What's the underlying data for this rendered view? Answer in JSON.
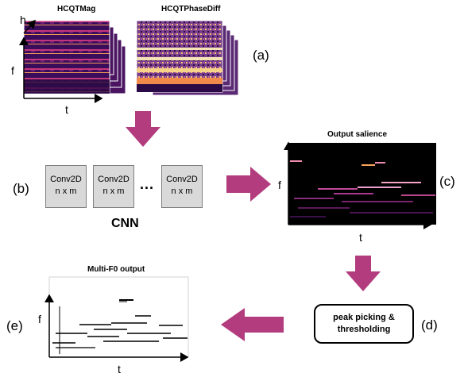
{
  "labels": {
    "hcqt_mag": "HCQTMag",
    "hcqt_phase": "HCQTPhaseDiff",
    "a": "(a)",
    "b": "(b)",
    "c": "(c)",
    "d": "(d)",
    "e": "(e)",
    "h": "h",
    "f": "f",
    "t": "t",
    "output_salience": "Output salience",
    "multi_f0": "Multi-F0 output",
    "cnn": "CNN",
    "dots": "...",
    "peak_line1": "peak picking &",
    "peak_line2": "thresholding"
  },
  "conv_blocks": [
    {
      "line1": "Conv2D",
      "line2": "n x m"
    },
    {
      "line1": "Conv2D",
      "line2": "n x m"
    },
    {
      "line1": "Conv2D",
      "line2": "n x m"
    }
  ],
  "colors": {
    "arrow": "#b23c7e",
    "spectrogram_dark": "#1a0530",
    "spectrogram_mid": "#8a1f6e",
    "spectrogram_hot": "#f9a35a",
    "salience_bg": "#000000",
    "phase_band": "#f3e2b5"
  }
}
